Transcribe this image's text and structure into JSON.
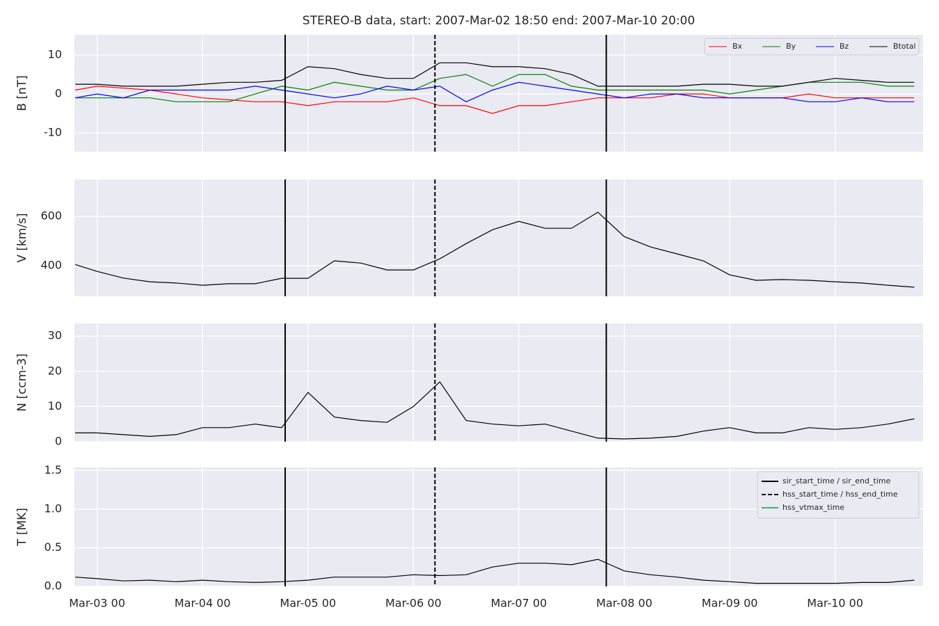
{
  "chart_data": {
    "type": "line",
    "title": "STEREO-B data, start: 2007-Mar-02 18:50  end: 2007-Mar-10 20:00",
    "x": [
      "Mar-02 19",
      "Mar-03 00",
      "Mar-03 06",
      "Mar-03 12",
      "Mar-03 18",
      "Mar-04 00",
      "Mar-04 06",
      "Mar-04 12",
      "Mar-04 18",
      "Mar-05 00",
      "Mar-05 06",
      "Mar-05 12",
      "Mar-05 18",
      "Mar-06 00",
      "Mar-06 06",
      "Mar-06 12",
      "Mar-06 18",
      "Mar-07 00",
      "Mar-07 06",
      "Mar-07 12",
      "Mar-07 18",
      "Mar-08 00",
      "Mar-08 06",
      "Mar-08 12",
      "Mar-08 18",
      "Mar-09 00",
      "Mar-09 06",
      "Mar-09 12",
      "Mar-09 18",
      "Mar-10 00",
      "Mar-10 06",
      "Mar-10 12",
      "Mar-10 18"
    ],
    "xlim": [
      "Mar-02 18:50",
      "Mar-10 20:00"
    ],
    "xticks": [
      "Mar-03 00",
      "Mar-04 00",
      "Mar-05 00",
      "Mar-06 00",
      "Mar-07 00",
      "Mar-08 00",
      "Mar-09 00",
      "Mar-10 00"
    ],
    "grid": true,
    "events": [
      {
        "name": "sir_start_time / sir_end_time",
        "color": "#000000",
        "style": "solid",
        "times": [
          "Mar-04 18:48",
          "Mar-07 19:54"
        ]
      },
      {
        "name": "hss_start_time / hss_end_time",
        "color": "#000000",
        "style": "dashed",
        "times": [
          "Mar-06 04:54"
        ]
      },
      {
        "name": "hss_vtmax_time",
        "color": "#3cb371",
        "style": "solid",
        "times": []
      }
    ],
    "panels": [
      {
        "ylabel": "B [nT]",
        "ylim": [
          -14.8,
          15.2
        ],
        "yticks": [
          -10,
          0,
          10
        ],
        "legend": "upper right",
        "series": [
          {
            "name": "Bx",
            "color": "#ff0000",
            "values": [
              1,
              2,
              1.5,
              1,
              0,
              -1,
              -1.5,
              -2,
              -2,
              -3,
              -2,
              -2,
              -2,
              -1,
              -3,
              -3,
              -5,
              -3,
              -3,
              -2,
              -1,
              -1,
              -1,
              0,
              0,
              -1,
              -1,
              -1,
              0,
              -1,
              -1,
              -1,
              -1
            ]
          },
          {
            "name": "By",
            "color": "#008000",
            "values": [
              -1,
              -1,
              -1,
              -1,
              -2,
              -2,
              -2,
              0,
              2,
              1,
              3,
              2,
              1,
              1,
              4,
              5,
              2,
              5,
              5,
              2,
              1,
              1,
              1,
              1,
              1,
              0,
              1,
              2,
              3,
              3,
              3,
              2,
              2
            ]
          },
          {
            "name": "Bz",
            "color": "#0000ff",
            "values": [
              -1,
              0,
              -1,
              1,
              1,
              1,
              1,
              2,
              1,
              0,
              -1,
              0,
              2,
              1,
              2,
              -2,
              1,
              3,
              2,
              1,
              0,
              -1,
              0,
              0,
              -1,
              -1,
              -1,
              -1,
              -2,
              -2,
              -1,
              -2,
              -2
            ]
          },
          {
            "name": "Btotal",
            "color": "#000000",
            "values": [
              2.5,
              2.5,
              2,
              2,
              2,
              2.5,
              3,
              3,
              3.5,
              7,
              6.5,
              5,
              4,
              4,
              8,
              8,
              7,
              7,
              6.5,
              5,
              2,
              2,
              2,
              2,
              2.5,
              2.5,
              2,
              2,
              3,
              4,
              3.5,
              3,
              3
            ]
          }
        ]
      },
      {
        "ylabel": "V [km/s]",
        "ylim": [
          276,
          750
        ],
        "yticks": [
          400,
          600
        ],
        "series": [
          {
            "color": "#000000",
            "values": [
              405,
              377,
              350,
              335,
              330,
              321,
              327,
              327,
              349,
              349,
              420,
              411,
              383,
              383,
              428,
              490,
              546,
              580,
              552,
              552,
              617,
              518,
              476,
              448,
              420,
              363,
              341,
              344,
              341,
              335,
              330,
              321,
              313
            ]
          }
        ]
      },
      {
        "ylabel": "N [ccm-3]",
        "ylim": [
          0,
          33.6
        ],
        "yticks": [
          0,
          10,
          20,
          30
        ],
        "series": [
          {
            "color": "#000000",
            "values": [
              2.5,
              2.5,
              2,
              1.5,
              2,
              4,
              4,
              5,
              4,
              14,
              7,
              6,
              5.5,
              10,
              17,
              6,
              5,
              4.5,
              5,
              3,
              1,
              0.8,
              1,
              1.5,
              3,
              4,
              2.5,
              2.5,
              4,
              3.5,
              4,
              5,
              6.5
            ]
          }
        ]
      },
      {
        "ylabel": "T [MK]",
        "ylim": [
          0,
          1.54
        ],
        "yticks": [
          {
            "value": 0,
            "label": "0.0"
          },
          0.5,
          {
            "value": 1,
            "label": "1.0"
          },
          1.5
        ],
        "legend": "upper right",
        "event_legend": true,
        "series": [
          {
            "color": "#000000",
            "values": [
              0.12,
              0.1,
              0.07,
              0.08,
              0.06,
              0.08,
              0.06,
              0.05,
              0.06,
              0.08,
              0.12,
              0.12,
              0.12,
              0.15,
              0.14,
              0.15,
              0.25,
              0.3,
              0.3,
              0.28,
              0.35,
              0.2,
              0.15,
              0.12,
              0.08,
              0.06,
              0.04,
              0.04,
              0.04,
              0.04,
              0.05,
              0.05,
              0.08
            ]
          }
        ]
      }
    ]
  }
}
